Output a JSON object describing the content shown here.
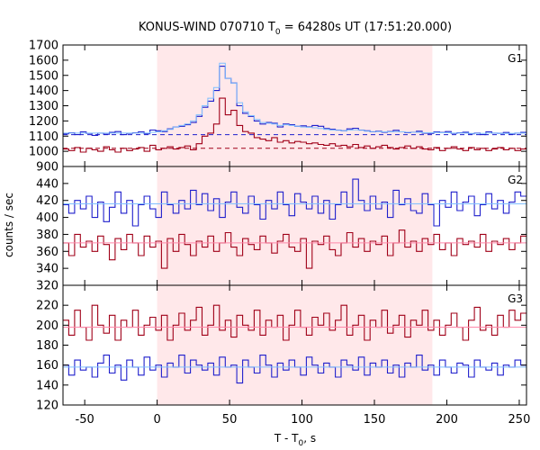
{
  "chart_data": {
    "type": "line",
    "title": "KONUS-WIND 070710 T",
    "title_sub": "0",
    "title_rest": " = 64280s UT (17:51:20.000)",
    "xlabel": "T - T",
    "xlabel_sub": "0",
    "xlabel_rest": ", s",
    "ylabel": "counts / sec",
    "xlim": [
      -65,
      255
    ],
    "xticks": [
      -50,
      0,
      50,
      100,
      150,
      200,
      250
    ],
    "shaded_interval": [
      0,
      190
    ],
    "colors": {
      "high_band": "#1f1fcc",
      "low_band": "#a00018",
      "high_fit": "#7fbfff",
      "low_fit": "#ff88aa",
      "shade": "#ffe8ea"
    },
    "panels": [
      {
        "name": "G1",
        "ylim": [
          900,
          1700
        ],
        "yticks": [
          900,
          1000,
          1100,
          1200,
          1300,
          1400,
          1500,
          1600,
          1700
        ],
        "yticklabels": [
          "900",
          "1000",
          "1100",
          "1200",
          "1300",
          "1400",
          "1500",
          "1600",
          "1700"
        ],
        "bin_width": 4,
        "x_start": -65,
        "series": [
          {
            "band": "high",
            "values": [
              1115,
              1122,
              1110,
              1128,
              1118,
              1105,
              1120,
              1112,
              1125,
              1130,
              1110,
              1118,
              1122,
              1128,
              1115,
              1140,
              1135,
              1130,
              1148,
              1160,
              1165,
              1175,
              1190,
              1230,
              1290,
              1330,
              1400,
              1560,
              1480,
              1450,
              1300,
              1250,
              1230,
              1200,
              1180,
              1190,
              1185,
              1160,
              1180,
              1175,
              1165,
              1168,
              1160,
              1170,
              1165,
              1150,
              1145,
              1140,
              1135,
              1148,
              1152,
              1140,
              1135,
              1128,
              1132,
              1125,
              1130,
              1138,
              1128,
              1122,
              1126,
              1132,
              1120,
              1118,
              1128,
              1124,
              1130,
              1118,
              1122,
              1126,
              1115,
              1120,
              1110,
              1128,
              1120,
              1118,
              1124,
              1112,
              1120,
              1125
            ]
          },
          {
            "band": "low",
            "values": [
              1015,
              1005,
              1025,
              995,
              1020,
              1010,
              1000,
              1030,
              1010,
              995,
              1020,
              1005,
              1015,
              1025,
              1000,
              1040,
              1010,
              1020,
              1030,
              1015,
              1025,
              1035,
              1010,
              1050,
              1100,
              1120,
              1180,
              1350,
              1240,
              1270,
              1170,
              1130,
              1120,
              1090,
              1080,
              1070,
              1090,
              1060,
              1070,
              1055,
              1065,
              1060,
              1050,
              1055,
              1045,
              1040,
              1050,
              1035,
              1040,
              1030,
              1045,
              1025,
              1035,
              1020,
              1030,
              1040,
              1025,
              1015,
              1025,
              1035,
              1020,
              1030,
              1015,
              1010,
              1025,
              1005,
              1020,
              1030,
              1015,
              1005,
              1025,
              1010,
              1020,
              1005,
              1015,
              1025,
              1010,
              1020,
              1005,
              1015
            ]
          }
        ],
        "fits": [
          {
            "band": "high",
            "value": 1110,
            "dashed": true
          },
          {
            "band": "low",
            "value": 1020,
            "dashed": true
          }
        ],
        "model": [
          {
            "band": "high",
            "values": [
              1120,
              1120,
              1120,
              1120,
              1120,
              1120,
              1120,
              1120,
              1120,
              1120,
              1120,
              1120,
              1120,
              1120,
              1120,
              1125,
              1128,
              1135,
              1145,
              1160,
              1170,
              1180,
              1200,
              1240,
              1300,
              1350,
              1420,
              1580,
              1480,
              1450,
              1320,
              1260,
              1235,
              1210,
              1190,
              1185,
              1180,
              1170,
              1175,
              1170,
              1165,
              1160,
              1158,
              1155,
              1150,
              1145,
              1140,
              1138,
              1135,
              1140,
              1142,
              1138,
              1132,
              1130,
              1130,
              1128,
              1128,
              1130,
              1128,
              1125,
              1125,
              1125,
              1122,
              1122,
              1124,
              1122,
              1122,
              1120,
              1120,
              1120,
              1118,
              1118,
              1118,
              1120,
              1120,
              1118,
              1118,
              1118,
              1120,
              1120
            ]
          }
        ]
      },
      {
        "name": "G2",
        "ylim": [
          320,
          460
        ],
        "yticks": [
          320,
          340,
          360,
          380,
          400,
          420,
          440
        ],
        "yticklabels": [
          "320",
          "340",
          "360",
          "380",
          "400",
          "420",
          "440"
        ],
        "bin_width": 4,
        "x_start": -65,
        "series": [
          {
            "band": "high",
            "values": [
              415,
              405,
              420,
              410,
              425,
              400,
              418,
              395,
              412,
              430,
              405,
              420,
              390,
              415,
              425,
              410,
              400,
              430,
              415,
              405,
              420,
              410,
              432,
              415,
              428,
              408,
              422,
              400,
              418,
              430,
              412,
              405,
              425,
              415,
              398,
              420,
              410,
              430,
              415,
              402,
              428,
              418,
              410,
              425,
              405,
              420,
              398,
              415,
              430,
              412,
              445,
              420,
              408,
              425,
              410,
              418,
              400,
              432,
              415,
              422,
              408,
              405,
              428,
              415,
              390,
              420,
              412,
              430,
              408,
              418,
              425,
              402,
              415,
              428,
              410,
              420,
              405,
              418,
              430,
              425
            ]
          },
          {
            "band": "low",
            "values": [
              370,
              355,
              380,
              365,
              372,
              360,
              378,
              368,
              350,
              375,
              362,
              380,
              370,
              355,
              378,
              365,
              372,
              340,
              375,
              360,
              380,
              368,
              355,
              372,
              365,
              378,
              360,
              370,
              382,
              365,
              355,
              375,
              368,
              362,
              378,
              370,
              358,
              372,
              380,
              365,
              360,
              375,
              340,
              372,
              368,
              378,
              362,
              355,
              370,
              382,
              365,
              375,
              360,
              372,
              368,
              378,
              355,
              370,
              385,
              365,
              372,
              360,
              375,
              368,
              380,
              362,
              370,
              355,
              375,
              368,
              372,
              365,
              380,
              360,
              372,
              368,
              375,
              362,
              370,
              378
            ]
          }
        ],
        "fits": [
          {
            "band": "high",
            "value": 416,
            "dashed": false
          },
          {
            "band": "low",
            "value": 370,
            "dashed": false
          }
        ]
      },
      {
        "name": "G3",
        "ylim": [
          120,
          240
        ],
        "yticks": [
          120,
          140,
          160,
          180,
          200,
          220
        ],
        "yticklabels": [
          "120",
          "140",
          "160",
          "180",
          "200",
          "220"
        ],
        "bin_width": 4,
        "x_start": -65,
        "series": [
          {
            "band": "high",
            "values": [
              160,
              150,
              165,
              155,
              158,
              148,
              162,
              170,
              152,
              160,
              145,
              165,
              158,
              150,
              168,
              155,
              160,
              148,
              162,
              158,
              170,
              152,
              165,
              160,
              155,
              162,
              150,
              168,
              158,
              160,
              142,
              165,
              158,
              152,
              170,
              160,
              148,
              162,
              155,
              165,
              158,
              150,
              168,
              160,
              152,
              162,
              158,
              148,
              165,
              160,
              155,
              168,
              150,
              162,
              158,
              165,
              152,
              160,
              148,
              162,
              158,
              170,
              155,
              160,
              150,
              165,
              158,
              152,
              162,
              160,
              148,
              165,
              158,
              155,
              162,
              150,
              160,
              158,
              165,
              160
            ]
          },
          {
            "band": "low",
            "values": [
              205,
              190,
              215,
              198,
              185,
              220,
              200,
              192,
              210,
              185,
              205,
              198,
              215,
              190,
              200,
              208,
              195,
              210,
              185,
              200,
              212,
              195,
              205,
              218,
              190,
              200,
              220,
              195,
              205,
              188,
              210,
              200,
              195,
              215,
              190,
              205,
              198,
              210,
              185,
              200,
              215,
              198,
              190,
              208,
              200,
              212,
              195,
              205,
              220,
              190,
              200,
              210,
              185,
              205,
              198,
              215,
              192,
              200,
              210,
              188,
              205,
              200,
              215,
              195,
              205,
              190,
              200,
              212,
              198,
              185,
              205,
              218,
              195,
              200,
              190,
              210,
              198,
              215,
              205,
              212
            ]
          }
        ],
        "fits": [
          {
            "band": "high",
            "value": 158,
            "dashed": false
          },
          {
            "band": "low",
            "value": 198,
            "dashed": false
          }
        ]
      }
    ]
  }
}
